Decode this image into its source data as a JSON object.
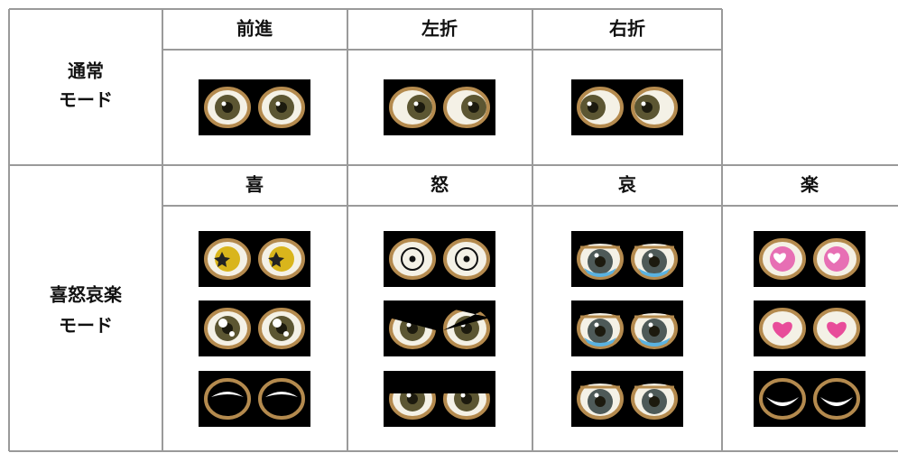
{
  "table": {
    "sections": [
      {
        "label": [
          "通常",
          "モード"
        ],
        "columns": [
          "前進",
          "左折",
          "右折"
        ]
      },
      {
        "label": [
          "喜怒哀楽",
          "モード"
        ],
        "columns": [
          "喜",
          "怒",
          "哀",
          "楽"
        ]
      }
    ]
  }
}
